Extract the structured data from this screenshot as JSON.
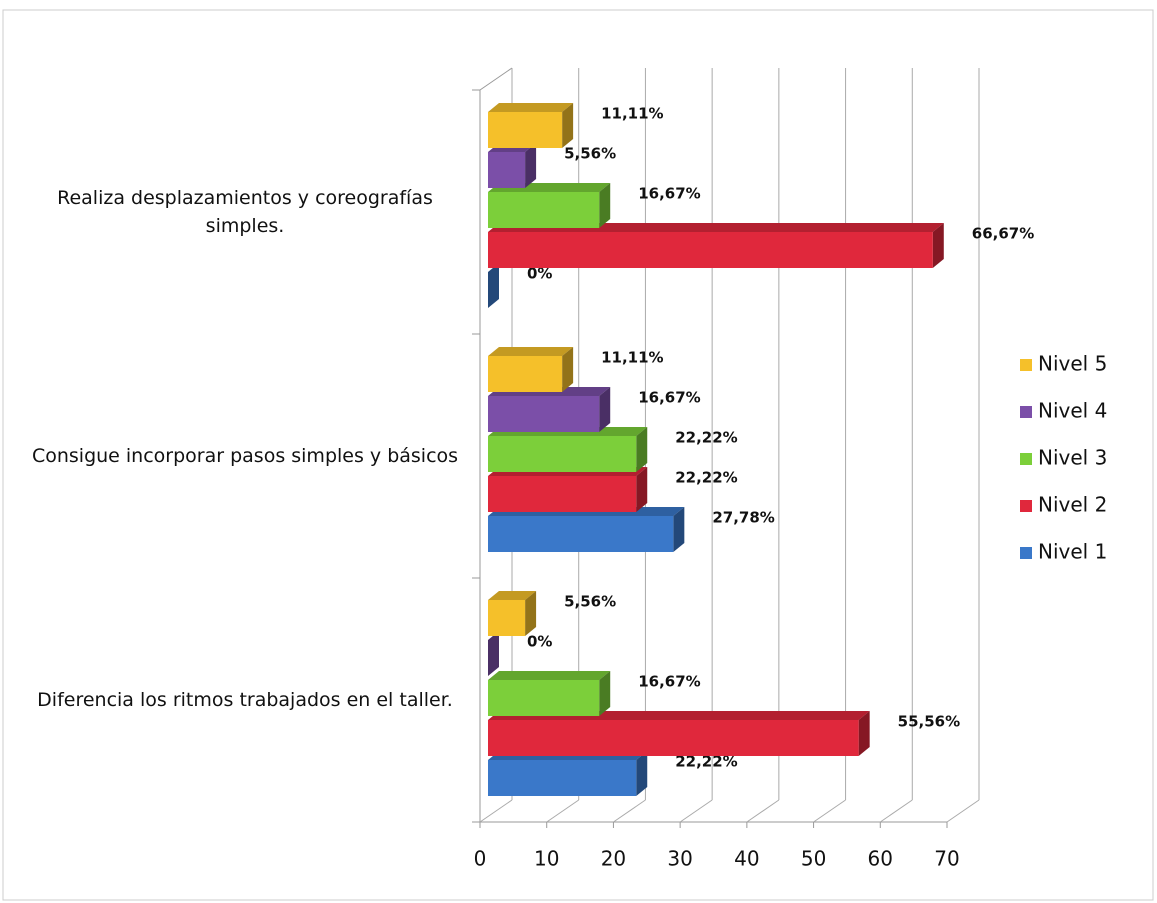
{
  "chart_data": {
    "type": "bar3d-horizontal",
    "categories": [
      "Diferencia los ritmos trabajados en el taller.",
      "Consigue incorporar pasos simples y básicos",
      "Realiza desplazamientos y coreografías simples."
    ],
    "series": [
      {
        "name": "Nivel 1",
        "color": "#3a78c9",
        "values": [
          22.22,
          27.78,
          0
        ],
        "value_labels": [
          "22,22%",
          "27,78%",
          "0%"
        ]
      },
      {
        "name": "Nivel 2",
        "color": "#e0283c",
        "values": [
          55.56,
          22.22,
          66.67
        ],
        "value_labels": [
          "55,56%",
          "22,22%",
          "66,67%"
        ]
      },
      {
        "name": "Nivel 3",
        "color": "#7ccf3a",
        "values": [
          16.67,
          22.22,
          16.67
        ],
        "value_labels": [
          "16,67%",
          "22,22%",
          "16,67%"
        ]
      },
      {
        "name": "Nivel 4",
        "color": "#7b4fa8",
        "values": [
          0,
          16.67,
          5.56
        ],
        "value_labels": [
          "0%",
          "16,67%",
          "5,56%"
        ]
      },
      {
        "name": "Nivel 5",
        "color": "#f5c02a",
        "values": [
          5.56,
          11.11,
          11.11
        ],
        "value_labels": [
          "5,56%",
          "11,11%",
          "11,11%"
        ]
      }
    ],
    "xlim": [
      0,
      70
    ],
    "xticks": [
      0,
      10,
      20,
      30,
      40,
      50,
      60,
      70
    ],
    "grid": true,
    "legend": "right"
  }
}
